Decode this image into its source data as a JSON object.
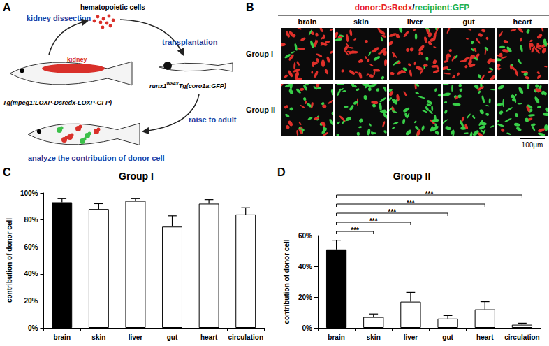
{
  "panels": {
    "A": {
      "label": "A",
      "kidney_dissection": "kidney dissection",
      "cells": "hematopoietic cells",
      "transplantation": "transplantation",
      "kidney": "kidney",
      "donor": "Tg(mpeg1:LOXP-Dsredx-LOXP-GFP)",
      "recipient": {
        "gene": "runx1",
        "superscript": "w84x",
        "rest": "Tg(coro1a:GFP)"
      },
      "raise": "raise to adult",
      "analyze": "analyze the contribution of donor cell"
    },
    "B": {
      "label": "B",
      "title": [
        {
          "text": "donor:DsRedx",
          "color": "#e8202a"
        },
        {
          "text": "/",
          "color": "#000000"
        },
        {
          "text": "recipient:GFP",
          "color": "#22b14c"
        }
      ],
      "columns": [
        "brain",
        "skin",
        "liver",
        "gut",
        "heart"
      ],
      "rows": [
        "Group I",
        "Group II"
      ],
      "scale_bar": "100μm"
    }
  },
  "chart_data": [
    {
      "panel": "C",
      "type": "bar",
      "title": "Group I",
      "categories": [
        "brain",
        "skin",
        "liver",
        "gut",
        "heart",
        "circulation"
      ],
      "values": [
        93,
        88,
        94,
        75,
        92,
        84
      ],
      "errors": [
        3,
        4,
        2,
        8,
        3,
        5
      ],
      "colors": [
        "#000000",
        "#ffffff",
        "#ffffff",
        "#ffffff",
        "#ffffff",
        "#ffffff"
      ],
      "y_label": "contribution of donor cell",
      "ylim": [
        0,
        100
      ],
      "yticks": [
        {
          "value": 0,
          "label": "0%"
        },
        {
          "value": 20,
          "label": "20%"
        },
        {
          "value": 40,
          "label": "40%"
        },
        {
          "value": 60,
          "label": "60%"
        },
        {
          "value": 80,
          "label": "80%"
        },
        {
          "value": 100,
          "label": "100%"
        }
      ],
      "grid": false
    },
    {
      "panel": "D",
      "type": "bar",
      "title": "Group II",
      "categories": [
        "brain",
        "skin",
        "liver",
        "gut",
        "heart",
        "circulation"
      ],
      "values": [
        51,
        7,
        17,
        6,
        12,
        2
      ],
      "errors": [
        6,
        2,
        6,
        2,
        5,
        1
      ],
      "colors": [
        "#000000",
        "#ffffff",
        "#ffffff",
        "#ffffff",
        "#ffffff",
        "#ffffff"
      ],
      "y_label": "contribution of donor cell",
      "ylim": [
        0,
        60
      ],
      "yticks": [
        {
          "value": 0,
          "label": "0%"
        },
        {
          "value": 20,
          "label": "20%"
        },
        {
          "value": 40,
          "label": "40%"
        },
        {
          "value": 60,
          "label": "60%"
        }
      ],
      "grid": false,
      "significance": [
        {
          "from": "brain",
          "to": "skin",
          "label": "***"
        },
        {
          "from": "brain",
          "to": "liver",
          "label": "***"
        },
        {
          "from": "brain",
          "to": "gut",
          "label": "***"
        },
        {
          "from": "brain",
          "to": "heart",
          "label": "***"
        },
        {
          "from": "brain",
          "to": "circulation",
          "label": "***"
        }
      ]
    }
  ]
}
